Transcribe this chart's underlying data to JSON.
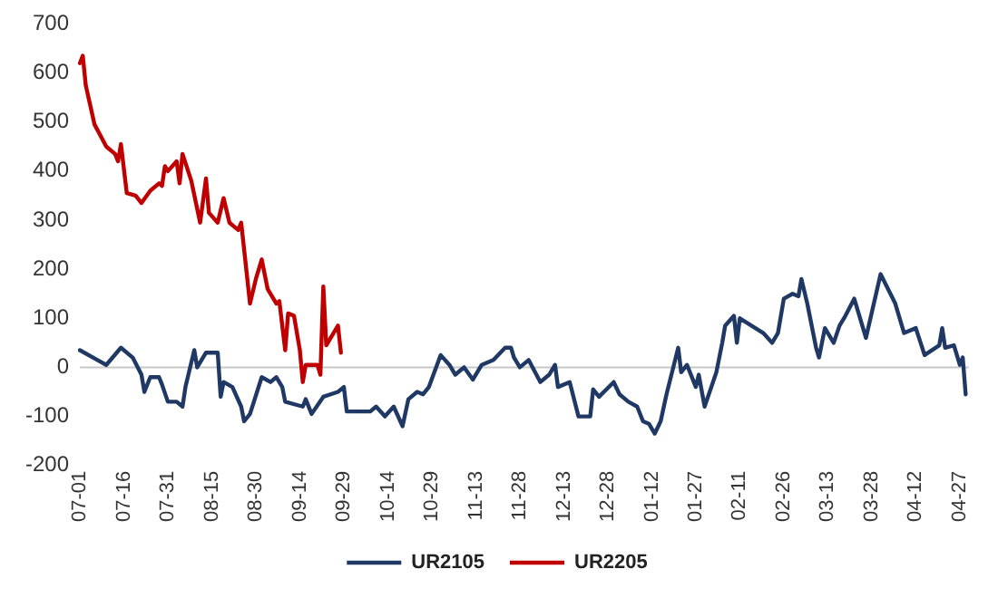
{
  "chart_data": {
    "type": "line",
    "ylim": [
      -200,
      700
    ],
    "yticks": [
      -200,
      -100,
      0,
      100,
      200,
      300,
      400,
      500,
      600,
      700
    ],
    "categories": [
      "07-01",
      null,
      null,
      null,
      null,
      null,
      null,
      null,
      null,
      null,
      null,
      null,
      null,
      null,
      null,
      "07-16",
      null,
      null,
      null,
      null,
      null,
      null,
      null,
      null,
      null,
      null,
      null,
      null,
      null,
      null,
      "07-31",
      null,
      null,
      null,
      null,
      null,
      null,
      null,
      null,
      null,
      null,
      null,
      null,
      null,
      null,
      "08-15",
      null,
      null,
      null,
      null,
      null,
      null,
      null,
      null,
      null,
      null,
      null,
      null,
      null,
      null,
      "08-30",
      null,
      null,
      null,
      null,
      null,
      null,
      null,
      null,
      null,
      null,
      null,
      null,
      null,
      null,
      "09-14",
      null,
      null,
      null,
      null,
      null,
      null,
      null,
      null,
      null,
      null,
      null,
      null,
      null,
      null,
      "09-29",
      null,
      null,
      null,
      null,
      null,
      null,
      null,
      null,
      null,
      null,
      null,
      null,
      null,
      null,
      "10-14",
      null,
      null,
      null,
      null,
      null,
      null,
      null,
      null,
      null,
      null,
      null,
      null,
      null,
      null,
      "10-29",
      null,
      null,
      null,
      null,
      null,
      null,
      null,
      null,
      null,
      null,
      null,
      null,
      null,
      null,
      "11-13",
      null,
      null,
      null,
      null,
      null,
      null,
      null,
      null,
      null,
      null,
      null,
      null,
      null,
      null,
      "11-28",
      null,
      null,
      null,
      null,
      null,
      null,
      null,
      null,
      null,
      null,
      null,
      null,
      null,
      null,
      "12-13",
      null,
      null,
      null,
      null,
      null,
      null,
      null,
      null,
      null,
      null,
      null,
      null,
      null,
      null,
      "12-28",
      null,
      null,
      null,
      null,
      null,
      null,
      null,
      null,
      null,
      null,
      null,
      null,
      null,
      null,
      "01-12",
      null,
      null,
      null,
      null,
      null,
      null,
      null,
      null,
      null,
      null,
      null,
      null,
      null,
      null,
      "01-27",
      null,
      null,
      null,
      null,
      null,
      null,
      null,
      null,
      null,
      null,
      null,
      null,
      null,
      null,
      "02-11",
      null,
      null,
      null,
      null,
      null,
      null,
      null,
      null,
      null,
      null,
      null,
      null,
      null,
      null,
      "02-26",
      null,
      null,
      null,
      null,
      null,
      null,
      null,
      null,
      null,
      null,
      null,
      null,
      null,
      null,
      "03-13",
      null,
      null,
      null,
      null,
      null,
      null,
      null,
      null,
      null,
      null,
      null,
      null,
      null,
      null,
      "03-28",
      null,
      null,
      null,
      null,
      null,
      null,
      null,
      null,
      null,
      null,
      null,
      null,
      null,
      null,
      "04-12",
      null,
      null,
      null,
      null,
      null,
      null,
      null,
      null,
      null,
      null,
      null,
      null,
      null,
      null,
      "04-27",
      null,
      null,
      null
    ],
    "ref_lines": [
      {
        "axis": "y",
        "value": 0,
        "color": "#c8c8c8"
      }
    ],
    "grid": false,
    "legend": "bottom",
    "marker": "none",
    "line_style": "solid",
    "series": [
      {
        "name": "UR2105",
        "color": "#1f3864",
        "values": [
          35,
          null,
          null,
          null,
          null,
          null,
          15,
          null,
          null,
          5,
          null,
          null,
          null,
          null,
          40,
          null,
          null,
          null,
          20,
          null,
          null,
          -15,
          -50,
          null,
          -20,
          null,
          null,
          -20,
          -35,
          null,
          -70,
          null,
          null,
          -70,
          null,
          -80,
          -40,
          null,
          null,
          35,
          0,
          null,
          null,
          30,
          null,
          null,
          null,
          30,
          -60,
          -30,
          null,
          null,
          -40,
          null,
          null,
          -80,
          -110,
          null,
          -95,
          null,
          null,
          null,
          -20,
          null,
          null,
          -30,
          null,
          -20,
          null,
          -40,
          -70,
          null,
          null,
          null,
          null,
          null,
          -80,
          -65,
          null,
          -95,
          null,
          null,
          null,
          -60,
          null,
          null,
          null,
          null,
          -50,
          null,
          -40,
          -90,
          null,
          null,
          null,
          null,
          null,
          null,
          null,
          -90,
          null,
          -80,
          null,
          null,
          -100,
          null,
          null,
          -80,
          null,
          null,
          -120,
          null,
          -65,
          null,
          null,
          -50,
          null,
          -55,
          null,
          -40,
          null,
          null,
          null,
          25,
          null,
          null,
          5,
          null,
          -15,
          null,
          null,
          0,
          null,
          null,
          -25,
          null,
          null,
          5,
          null,
          null,
          null,
          15,
          null,
          null,
          null,
          40,
          null,
          40,
          20,
          null,
          0,
          null,
          null,
          15,
          null,
          null,
          null,
          -30,
          null,
          null,
          -15,
          null,
          5,
          -40,
          null,
          null,
          null,
          -30,
          null,
          null,
          -100,
          null,
          null,
          null,
          -100,
          -45,
          null,
          -60,
          null,
          null,
          null,
          null,
          -30,
          null,
          -55,
          null,
          null,
          -70,
          null,
          null,
          -80,
          null,
          -110,
          null,
          -115,
          null,
          -135,
          null,
          -110,
          null,
          -55,
          null,
          null,
          null,
          40,
          -10,
          null,
          5,
          null,
          null,
          -40,
          -15,
          null,
          -80,
          null,
          null,
          null,
          -10,
          null,
          50,
          85,
          null,
          null,
          105,
          50,
          100,
          null,
          null,
          null,
          null,
          null,
          null,
          null,
          70,
          null,
          null,
          50,
          null,
          70,
          null,
          140,
          null,
          null,
          150,
          null,
          145,
          180,
          null,
          130,
          null,
          null,
          40,
          20,
          null,
          80,
          null,
          null,
          50,
          null,
          85,
          null,
          105,
          null,
          null,
          140,
          null,
          null,
          null,
          60,
          null,
          null,
          null,
          null,
          190,
          null,
          null,
          null,
          null,
          130,
          null,
          null,
          70,
          null,
          null,
          null,
          80,
          null,
          null,
          25,
          null,
          null,
          null,
          null,
          45,
          80,
          40,
          null,
          null,
          45,
          null,
          5,
          20,
          -55,
          null
        ]
      },
      {
        "name": "UR2205",
        "color": "#c00000",
        "values": [
          620,
          635,
          575,
          null,
          null,
          495,
          null,
          null,
          null,
          450,
          null,
          null,
          435,
          420,
          455,
          null,
          355,
          null,
          null,
          350,
          null,
          335,
          null,
          null,
          360,
          null,
          null,
          375,
          370,
          410,
          400,
          null,
          null,
          420,
          375,
          435,
          null,
          null,
          380,
          null,
          null,
          295,
          null,
          385,
          315,
          null,
          null,
          295,
          null,
          345,
          null,
          295,
          null,
          null,
          280,
          295,
          null,
          null,
          130,
          null,
          180,
          null,
          220,
          null,
          160,
          null,
          null,
          130,
          135,
          null,
          35,
          110,
          null,
          105,
          null,
          35,
          -30,
          5,
          null,
          null,
          null,
          5,
          -15,
          165,
          45,
          null,
          null,
          null,
          85,
          30,
          null,
          null,
          null,
          null,
          null,
          null,
          null,
          null,
          null,
          null,
          null,
          null,
          null,
          null,
          null,
          null,
          null,
          null,
          null,
          null,
          null,
          null,
          null,
          null,
          null,
          null,
          null,
          null,
          null,
          null,
          null,
          null,
          null,
          null,
          null,
          null,
          null,
          null,
          null,
          null,
          null,
          null,
          null,
          null,
          null,
          null,
          null,
          null,
          null,
          null,
          null,
          null,
          null,
          null,
          null,
          null,
          null,
          null,
          null,
          null,
          null,
          null,
          null,
          null,
          null,
          null,
          null,
          null,
          null,
          null,
          null,
          null,
          null,
          null,
          null,
          null,
          null,
          null,
          null,
          null,
          null,
          null,
          null,
          null,
          null,
          null,
          null,
          null,
          null,
          null,
          null,
          null,
          null,
          null,
          null,
          null,
          null,
          null,
          null,
          null,
          null,
          null,
          null,
          null,
          null,
          null,
          null,
          null,
          null,
          null,
          null,
          null,
          null,
          null,
          null,
          null,
          null,
          null,
          null,
          null,
          null,
          null,
          null,
          null,
          null,
          null,
          null,
          null,
          null,
          null,
          null,
          null,
          null,
          null,
          null,
          null,
          null,
          null,
          null,
          null,
          null,
          null,
          null,
          null,
          null,
          null,
          null,
          null,
          null,
          null,
          null,
          null,
          null,
          null,
          null,
          null,
          null,
          null,
          null,
          null,
          null,
          null,
          null,
          null,
          null,
          null,
          null,
          null,
          null,
          null,
          null,
          null,
          null,
          null,
          null,
          null,
          null,
          null,
          null,
          null,
          null,
          null,
          null,
          null,
          null,
          null,
          null,
          null,
          null,
          null,
          null,
          null,
          null,
          null,
          null,
          null,
          null,
          null,
          null,
          null,
          null,
          null,
          null,
          null,
          null,
          null,
          null,
          null,
          null,
          null,
          null,
          null,
          null,
          null
        ]
      }
    ]
  }
}
